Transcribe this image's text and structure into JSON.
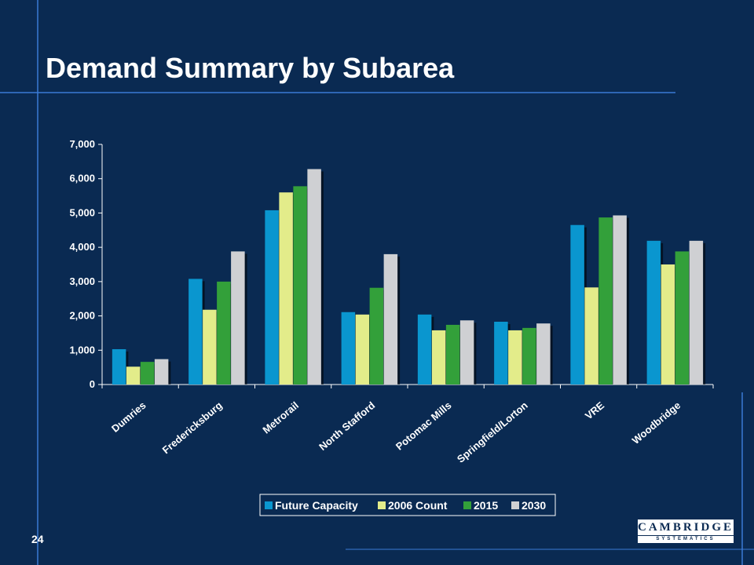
{
  "slide": {
    "title": "Demand Summary by Subarea",
    "page_number": "24",
    "logo": {
      "name": "CAMBRIDGE",
      "tagline": "SYSTEMATICS"
    }
  },
  "colors": {
    "background": "#0a2a52",
    "guide_lines": "#3a7bd5",
    "series": [
      "#0a96cf",
      "#e3ec8a",
      "#33a03a",
      "#cfd0d3"
    ]
  },
  "chart_data": {
    "type": "bar",
    "categories": [
      "Dumries",
      "Fredericksburg",
      "Metrorail",
      "North Stafford",
      "Potomac Mills",
      "Springfield/Lorton",
      "VRE",
      "Woodbridge"
    ],
    "series": [
      {
        "name": "Future Capacity",
        "values": [
          1030,
          3080,
          5080,
          2110,
          2040,
          1830,
          4650,
          4190
        ]
      },
      {
        "name": "2006 Count",
        "values": [
          520,
          2180,
          5600,
          2040,
          1580,
          1580,
          2830,
          3500
        ]
      },
      {
        "name": "2015",
        "values": [
          660,
          3000,
          5780,
          2820,
          1740,
          1650,
          4870,
          3880
        ]
      },
      {
        "name": "2030",
        "values": [
          740,
          3880,
          6280,
          3800,
          1870,
          1780,
          4930,
          4190
        ]
      }
    ],
    "ylim": [
      0,
      7000
    ],
    "yticks": [
      "0",
      "1,000",
      "2,000",
      "3,000",
      "4,000",
      "5,000",
      "6,000",
      "7,000"
    ],
    "legend_position": "bottom",
    "grid": false
  }
}
